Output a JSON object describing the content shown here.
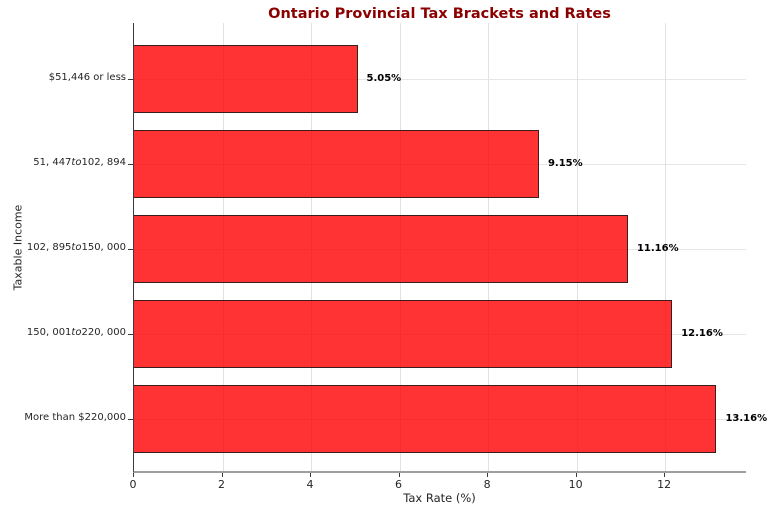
{
  "chart_data": {
    "type": "bar",
    "orientation": "horizontal",
    "title": "Ontario Provincial Tax Brackets and Rates",
    "xlabel": "Tax Rate (%)",
    "ylabel": "Taxable Income",
    "categories": [
      [
        {
          "t": "$51,446 or less",
          "i": false
        }
      ],
      [
        {
          "t": "51, 447",
          "i": false
        },
        {
          "t": "to",
          "i": true
        },
        {
          "t": "102, 894",
          "i": false
        }
      ],
      [
        {
          "t": "102, 895",
          "i": false
        },
        {
          "t": "to",
          "i": true
        },
        {
          "t": "150, 000",
          "i": false
        }
      ],
      [
        {
          "t": "150, 001",
          "i": false
        },
        {
          "t": "to",
          "i": true
        },
        {
          "t": "220, 000",
          "i": false
        }
      ],
      [
        {
          "t": "More than $220,000",
          "i": false
        }
      ]
    ],
    "values": [
      5.05,
      9.15,
      11.16,
      12.16,
      13.16
    ],
    "value_labels": [
      "5.05%",
      "9.15%",
      "11.16%",
      "12.16%",
      "13.16%"
    ],
    "x_ticks": [
      "0",
      "2",
      "4",
      "6",
      "8",
      "10",
      "12"
    ],
    "x_tick_values": [
      0,
      2,
      4,
      6,
      8,
      10,
      12
    ],
    "xlim": [
      0,
      13.85
    ],
    "grid": true,
    "legend": null,
    "colors": {
      "bar_fill": "#ff0000",
      "bar_fill_opacity": 0.8,
      "bar_edge": "#1a1a1a",
      "title": "#8b0000",
      "grid": "#e2e2e2",
      "text": "#262626"
    }
  }
}
